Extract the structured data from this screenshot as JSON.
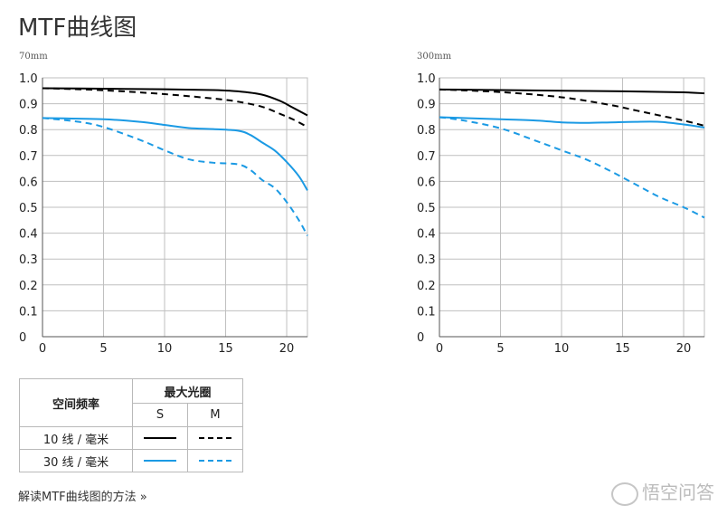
{
  "page": {
    "title": "MTF曲线图"
  },
  "colors": {
    "black": "#000000",
    "blue": "#1b9ae4",
    "grid": "#bfbfbf"
  },
  "chart_data": [
    {
      "type": "line",
      "subtitle": "70mm",
      "xlim": [
        0,
        21.7
      ],
      "ylim": [
        0,
        1.0
      ],
      "xticks": [
        0,
        5,
        10,
        15,
        20
      ],
      "yticks": [
        0,
        0.1,
        0.2,
        0.3,
        0.4,
        0.5,
        0.6,
        0.7,
        0.8,
        0.9,
        1.0
      ],
      "grid": true,
      "series": [
        {
          "color": "black",
          "dash": false,
          "points": [
            [
              0,
              0.96
            ],
            [
              5,
              0.958
            ],
            [
              10,
              0.956
            ],
            [
              14,
              0.953
            ],
            [
              16,
              0.948
            ],
            [
              18,
              0.935
            ],
            [
              19.5,
              0.91
            ],
            [
              20.5,
              0.885
            ],
            [
              21.7,
              0.855
            ]
          ]
        },
        {
          "color": "black",
          "dash": true,
          "points": [
            [
              0,
              0.96
            ],
            [
              5,
              0.952
            ],
            [
              10,
              0.937
            ],
            [
              14,
              0.92
            ],
            [
              16,
              0.908
            ],
            [
              18,
              0.888
            ],
            [
              19.5,
              0.86
            ],
            [
              20.5,
              0.84
            ],
            [
              21.7,
              0.81
            ]
          ]
        },
        {
          "color": "blue",
          "dash": false,
          "points": [
            [
              0,
              0.845
            ],
            [
              5,
              0.84
            ],
            [
              8,
              0.83
            ],
            [
              10,
              0.818
            ],
            [
              12,
              0.806
            ],
            [
              14,
              0.802
            ],
            [
              16,
              0.796
            ],
            [
              17,
              0.78
            ],
            [
              18,
              0.75
            ],
            [
              19,
              0.72
            ],
            [
              20,
              0.675
            ],
            [
              21,
              0.62
            ],
            [
              21.7,
              0.565
            ]
          ]
        },
        {
          "color": "blue",
          "dash": true,
          "points": [
            [
              0,
              0.845
            ],
            [
              3,
              0.83
            ],
            [
              5,
              0.81
            ],
            [
              8,
              0.76
            ],
            [
              10,
              0.72
            ],
            [
              12,
              0.685
            ],
            [
              14,
              0.672
            ],
            [
              16,
              0.666
            ],
            [
              17,
              0.645
            ],
            [
              18,
              0.605
            ],
            [
              19,
              0.575
            ],
            [
              20,
              0.52
            ],
            [
              21,
              0.45
            ],
            [
              21.7,
              0.39
            ]
          ]
        }
      ]
    },
    {
      "type": "line",
      "subtitle": "300mm",
      "xlim": [
        0,
        21.7
      ],
      "ylim": [
        0,
        1.0
      ],
      "xticks": [
        0,
        5,
        10,
        15,
        20
      ],
      "yticks": [
        0,
        0.1,
        0.2,
        0.3,
        0.4,
        0.5,
        0.6,
        0.7,
        0.8,
        0.9,
        1.0
      ],
      "grid": true,
      "series": [
        {
          "color": "black",
          "dash": false,
          "points": [
            [
              0,
              0.955
            ],
            [
              5,
              0.953
            ],
            [
              10,
              0.95
            ],
            [
              15,
              0.948
            ],
            [
              20,
              0.944
            ],
            [
              21.7,
              0.94
            ]
          ]
        },
        {
          "color": "black",
          "dash": true,
          "points": [
            [
              0,
              0.955
            ],
            [
              5,
              0.945
            ],
            [
              10,
              0.925
            ],
            [
              14,
              0.895
            ],
            [
              16,
              0.875
            ],
            [
              18,
              0.855
            ],
            [
              20,
              0.835
            ],
            [
              21.7,
              0.815
            ]
          ]
        },
        {
          "color": "blue",
          "dash": false,
          "points": [
            [
              0,
              0.848
            ],
            [
              5,
              0.84
            ],
            [
              8,
              0.835
            ],
            [
              10,
              0.828
            ],
            [
              12,
              0.826
            ],
            [
              14,
              0.828
            ],
            [
              16,
              0.83
            ],
            [
              18,
              0.83
            ],
            [
              20,
              0.82
            ],
            [
              21.7,
              0.808
            ]
          ]
        },
        {
          "color": "blue",
          "dash": true,
          "points": [
            [
              0,
              0.848
            ],
            [
              2,
              0.835
            ],
            [
              5,
              0.805
            ],
            [
              8,
              0.755
            ],
            [
              10,
              0.72
            ],
            [
              12,
              0.685
            ],
            [
              14,
              0.64
            ],
            [
              16,
              0.59
            ],
            [
              18,
              0.54
            ],
            [
              20,
              0.5
            ],
            [
              21.7,
              0.46
            ]
          ]
        }
      ]
    }
  ],
  "legend": {
    "spatial_header": "空间频率",
    "aperture_header": "最大光圈",
    "col_s": "S",
    "col_m": "M",
    "row_10": "10 线 / 毫米",
    "row_30": "30 线 / 毫米"
  },
  "footer": {
    "link": "解读MTF曲线图的方法 »"
  },
  "watermark": {
    "text": "悟空问答"
  }
}
